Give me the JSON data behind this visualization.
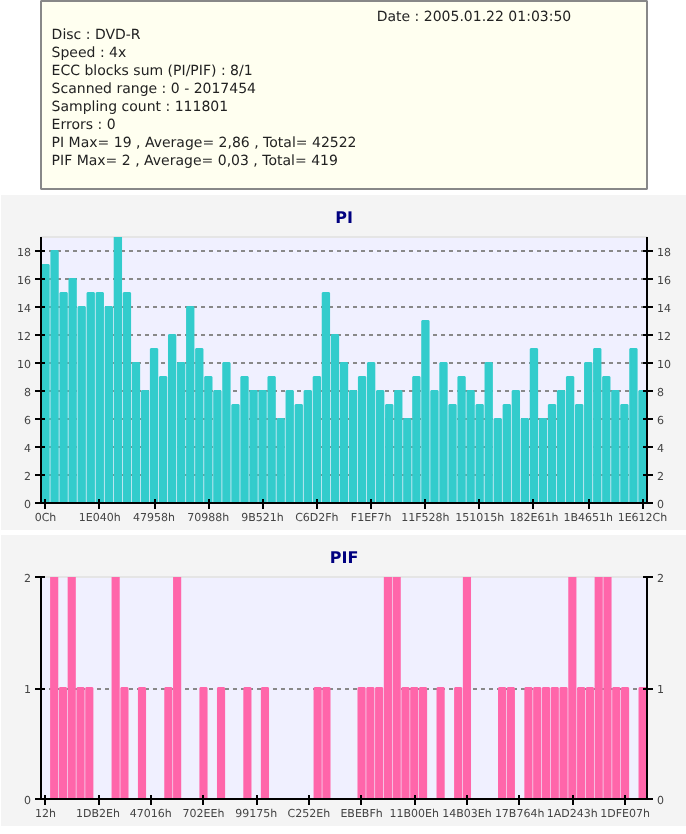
{
  "chart_data": [
    {
      "type": "other",
      "annotations": [
        "Date : 2005.01.22 01:03:50",
        "Disc : DVD-R",
        "Speed : 4x",
        "ECC blocks sum (PI/PIF) : 8/1",
        "Scanned range : 0 - 2017454",
        "Sampling count : 111801",
        "Errors : 0",
        "PI Max= 19 , Average= 2,86 , Total= 42522",
        "PIF Max= 2 , Average= 0,03 , Total= 419"
      ]
    },
    {
      "type": "bar",
      "title": "PI",
      "color": "#33cccc",
      "grid": "y",
      "ylim": [
        0,
        19
      ],
      "yticks": [
        0,
        2,
        4,
        6,
        8,
        10,
        12,
        14,
        16,
        18
      ],
      "y2lim": [
        0,
        19
      ],
      "y2ticks": [
        0,
        2,
        4,
        6,
        8,
        10,
        12,
        14,
        16,
        18
      ],
      "categories": [
        "0Ch",
        null,
        null,
        null,
        null,
        null,
        "1E040h",
        null,
        null,
        null,
        null,
        null,
        "47958h",
        null,
        null,
        null,
        null,
        null,
        "70988h",
        null,
        null,
        null,
        null,
        null,
        "9B521h",
        null,
        null,
        null,
        null,
        null,
        "C6D2Fh",
        null,
        null,
        null,
        null,
        null,
        "F1EF7h",
        null,
        null,
        null,
        null,
        null,
        "11F528h",
        null,
        null,
        null,
        null,
        null,
        "151015h",
        null,
        null,
        null,
        null,
        null,
        "182E61h",
        null,
        null,
        null,
        null,
        null,
        "1B4651h",
        null,
        null,
        null,
        null,
        null,
        "1E612Ch"
      ],
      "values": [
        17,
        18,
        15,
        16,
        14,
        15,
        15,
        14,
        19,
        15,
        10,
        8,
        11,
        9,
        12,
        10,
        14,
        11,
        9,
        8,
        10,
        7,
        9,
        8,
        8,
        9,
        6,
        8,
        7,
        8,
        9,
        15,
        12,
        10,
        8,
        9,
        10,
        8,
        7,
        8,
        6,
        9,
        13,
        8,
        10,
        7,
        9,
        8,
        7,
        10,
        6,
        7,
        8,
        6,
        11,
        6,
        7,
        8,
        9,
        7,
        10,
        11,
        9,
        8,
        7,
        11,
        8
      ]
    },
    {
      "type": "bar",
      "title": "PIF",
      "color": "#ff66aa",
      "grid": "y",
      "ylim": [
        0,
        2
      ],
      "yticks": [
        0,
        1,
        2
      ],
      "y2lim": [
        0,
        2
      ],
      "y2ticks": [
        0,
        1,
        2
      ],
      "categories": [
        "12h",
        null,
        null,
        null,
        null,
        null,
        "1DB2Eh",
        null,
        null,
        null,
        null,
        null,
        "47016h",
        null,
        null,
        null,
        null,
        null,
        "702EEh",
        null,
        null,
        null,
        null,
        null,
        "99175h",
        null,
        null,
        null,
        null,
        null,
        "C252Eh",
        null,
        null,
        null,
        null,
        null,
        "EBEBFh",
        null,
        null,
        null,
        null,
        null,
        "11B00Eh",
        null,
        null,
        null,
        null,
        null,
        "14B03Eh",
        null,
        null,
        null,
        null,
        null,
        "17B764h",
        null,
        null,
        null,
        null,
        null,
        "1AD243h",
        null,
        null,
        null,
        null,
        null,
        "1DFE07h",
        null,
        null
      ],
      "values": [
        0,
        2,
        1,
        2,
        1,
        1,
        0,
        0,
        2,
        1,
        0,
        1,
        0,
        0,
        1,
        2,
        0,
        0,
        1,
        0,
        1,
        0,
        0,
        1,
        0,
        1,
        0,
        0,
        0,
        0,
        0,
        1,
        1,
        0,
        0,
        0,
        1,
        1,
        1,
        2,
        2,
        1,
        1,
        1,
        0,
        1,
        0,
        1,
        2,
        0,
        0,
        0,
        1,
        1,
        0,
        1,
        1,
        1,
        1,
        1,
        2,
        1,
        1,
        2,
        2,
        1,
        1,
        0,
        1
      ]
    }
  ]
}
